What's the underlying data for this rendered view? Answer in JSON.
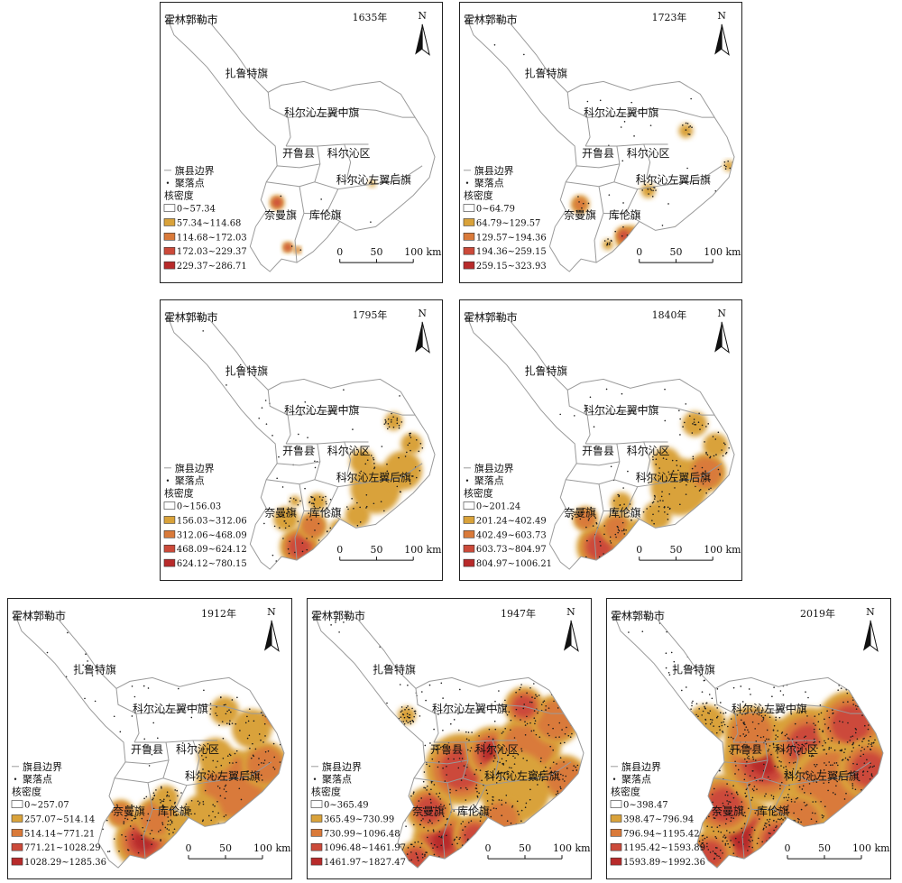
{
  "labels": {
    "north": "N",
    "region_hulunbuir": "霍林郭勒市",
    "region_zalute": "扎鲁特旗",
    "region_zuozhong": "科尔沁左翼中旗",
    "region_kailu": "开鲁县",
    "region_keerqin": "科尔沁区",
    "region_zuohou": "科尔沁左翼后旗",
    "region_naiman": "奈曼旗",
    "region_kulun": "库伦旗",
    "legend_boundary": "旗县边界",
    "legend_settlement": "聚落点",
    "legend_density_title": "核密度",
    "scale_0": "0",
    "scale_50": "50",
    "scale_100": "100 km"
  },
  "colors": {
    "class_0": "#ffffff",
    "class_1": "#d9a23a",
    "class_2": "#d97a3a",
    "class_3": "#cc4a3a",
    "class_4": "#b82a2a",
    "boundary": "#9a9a9a",
    "settlement": "#1a1a1a"
  },
  "panels": [
    {
      "year": "1635年",
      "density_classes": [
        "0~57.34",
        "57.34~114.68",
        "114.68~172.03",
        "172.03~229.37",
        "229.37~286.71"
      ]
    },
    {
      "year": "1723年",
      "density_classes": [
        "0~64.79",
        "64.79~129.57",
        "129.57~194.36",
        "194.36~259.15",
        "259.15~323.93"
      ]
    },
    {
      "year": "1795年",
      "density_classes": [
        "0~156.03",
        "156.03~312.06",
        "312.06~468.09",
        "468.09~624.12",
        "624.12~780.15"
      ]
    },
    {
      "year": "1840年",
      "density_classes": [
        "0~201.24",
        "201.24~402.49",
        "402.49~603.73",
        "603.73~804.97",
        "804.97~1006.21"
      ]
    },
    {
      "year": "1912年",
      "density_classes": [
        "0~257.07",
        "257.07~514.14",
        "514.14~771.21",
        "771.21~1028.29",
        "1028.29~1285.36"
      ]
    },
    {
      "year": "1947年",
      "density_classes": [
        "0~365.49",
        "365.49~730.99",
        "730.99~1096.48",
        "1096.48~1461.97",
        "1461.97~1827.47"
      ]
    },
    {
      "year": "2019年",
      "density_classes": [
        "0~398.47",
        "398.47~796.94",
        "796.94~1195.42",
        "1195.42~1593.89",
        "1593.89~1992.36"
      ]
    }
  ]
}
